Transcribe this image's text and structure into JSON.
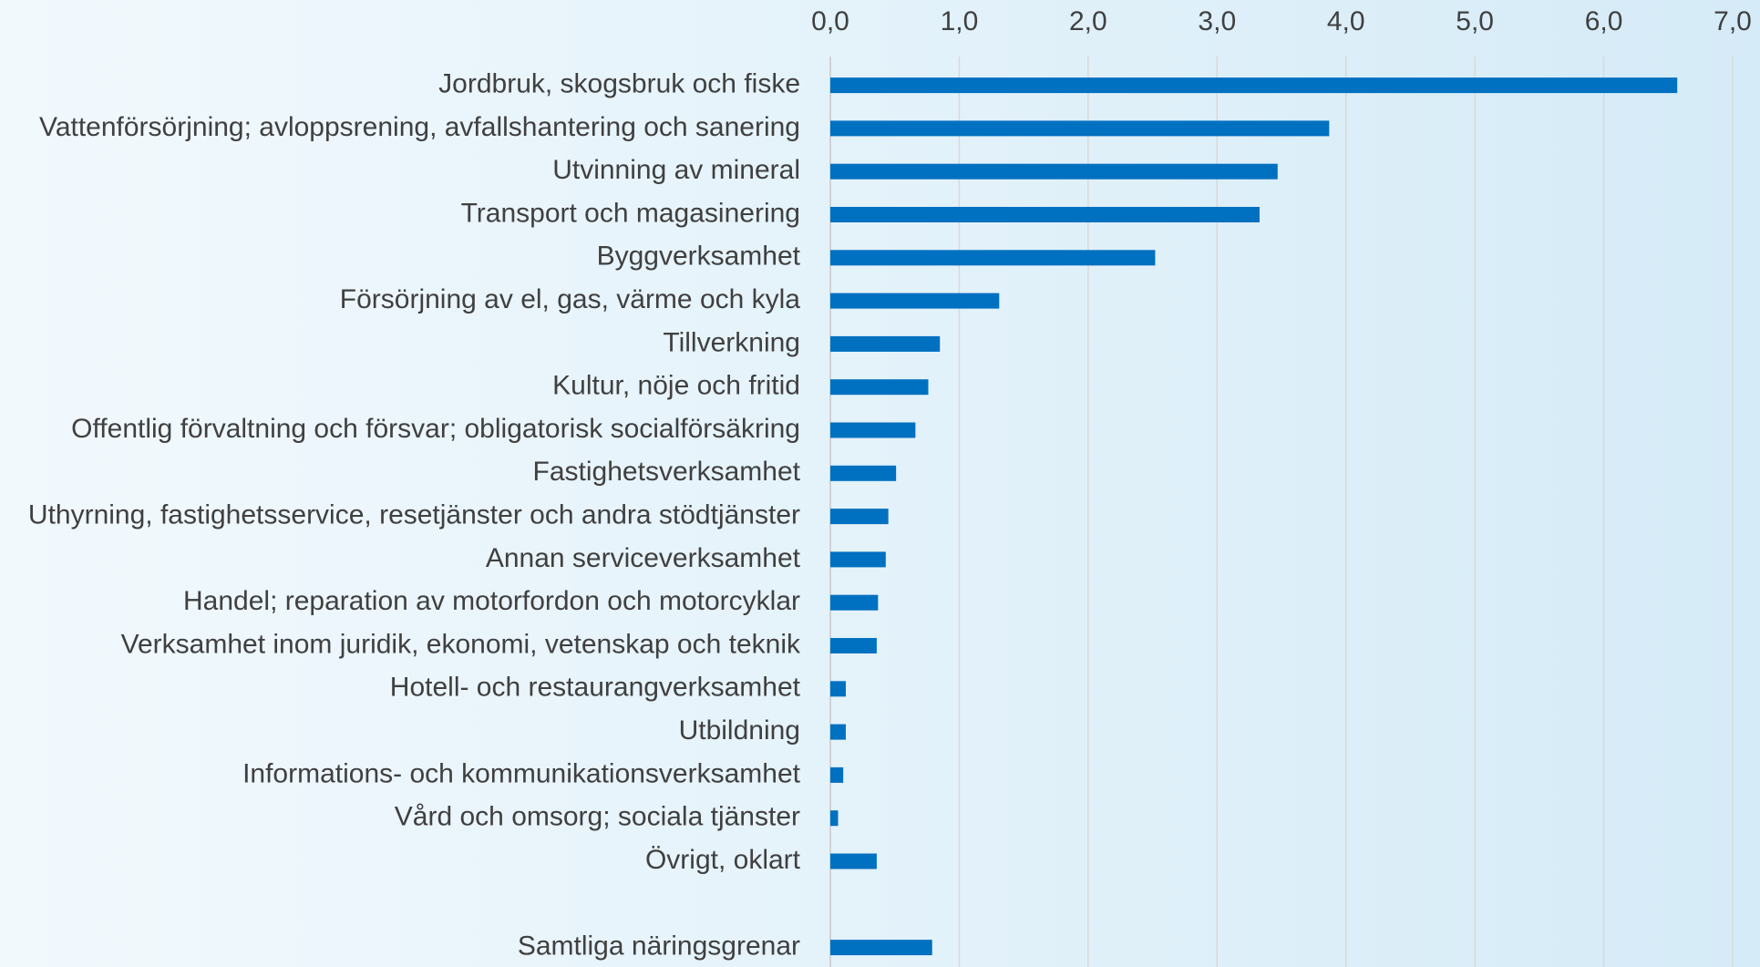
{
  "chart_data": {
    "type": "bar",
    "orientation": "horizontal",
    "color": "#0070c0",
    "grid": true,
    "categories": [
      "Jordbruk, skogsbruk och fiske",
      "Vattenförsörjning; avloppsrening, avfallshantering och sanering",
      "Utvinning av mineral",
      "Transport och magasinering",
      "Byggverksamhet",
      "Försörjning av el, gas, värme och kyla",
      "Tillverkning",
      "Kultur, nöje och fritid",
      "Offentlig förvaltning och försvar;  obligatorisk socialförsäkring",
      "Fastighetsverksamhet",
      "Uthyrning, fastighetsservice, resetjänster och andra stödtjänster",
      "Annan serviceverksamhet",
      "Handel; reparation av motorfordon och motorcyklar",
      "Verksamhet inom juridik, ekonomi, vetenskap och teknik",
      "Hotell- och restaurangverksamhet",
      "Utbildning",
      "Informations- och kommunikationsverksamhet",
      "Vård och omsorg; sociala tjänster",
      "Övrigt, oklart",
      null,
      "Samtliga näringsgrenar"
    ],
    "values": [
      6.57,
      3.87,
      3.47,
      3.33,
      2.52,
      1.31,
      0.85,
      0.76,
      0.66,
      0.51,
      0.45,
      0.43,
      0.37,
      0.36,
      0.12,
      0.12,
      0.1,
      0.06,
      0.36,
      null,
      0.79
    ],
    "xlim": [
      0,
      7
    ],
    "xticks": [
      {
        "value": 0,
        "label": "0,0"
      },
      {
        "value": 1,
        "label": "1,0"
      },
      {
        "value": 2,
        "label": "2,0"
      },
      {
        "value": 3,
        "label": "3,0"
      },
      {
        "value": 4,
        "label": "4,0"
      },
      {
        "value": 5,
        "label": "5,0"
      },
      {
        "value": 6,
        "label": "6,0"
      },
      {
        "value": 7,
        "label": "7,0"
      }
    ]
  }
}
